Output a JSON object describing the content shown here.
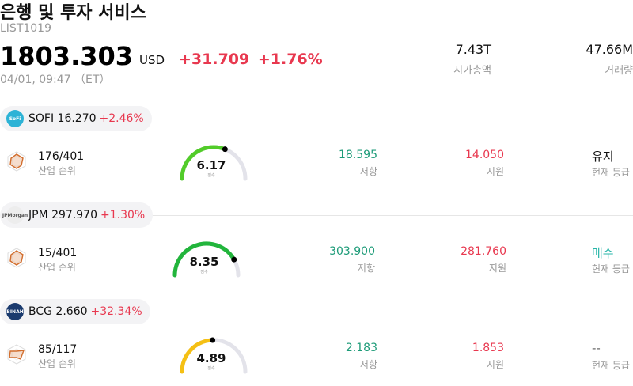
{
  "header": {
    "title": "은행 및 투자 서비스",
    "code": "LIST1019",
    "price": "1803.303",
    "currency": "USD",
    "change_abs": "+31.709",
    "change_pct": "+1.76%",
    "timestamp": "04/01, 09:47 （ET）",
    "market_cap_value": "7.43T",
    "market_cap_label": "시가총액",
    "volume_value": "47.66M",
    "volume_label": "거래량"
  },
  "colors": {
    "up": "#e8384f",
    "resistance": "#1d9b78",
    "buy": "#26b5a8"
  },
  "stocks": [
    {
      "symbol_price": "SOFI 16.270",
      "change": "+2.46%",
      "logo_text": "SoFi",
      "logo_color": "#2db3d6",
      "rank": "176/401",
      "rank_label": "산업 순위",
      "score": "6.17",
      "score_fraction": 0.617,
      "score_color": "#52cc2a",
      "score_label": "점수",
      "resistance": "18.595",
      "resistance_label": "저항",
      "support": "14.050",
      "support_label": "지원",
      "grade": "유지",
      "grade_color": "#111111",
      "grade_label": "현재 등급"
    },
    {
      "symbol_price": "JPM 297.970",
      "change": "+1.30%",
      "logo_text": "JPMorgan",
      "logo_color": "#ededed",
      "rank": "15/401",
      "rank_label": "산업 순위",
      "score": "8.35",
      "score_fraction": 0.835,
      "score_color": "#22b53c",
      "score_label": "점수",
      "resistance": "303.900",
      "resistance_label": "저항",
      "support": "281.760",
      "support_label": "지원",
      "grade": "매수",
      "grade_color": "#26b5a8",
      "grade_label": "현재 등급"
    },
    {
      "symbol_price": "BCG 2.660",
      "change": "+32.34%",
      "logo_text": "BINAH",
      "logo_color": "#1a3a6e",
      "rank": "85/117",
      "rank_label": "산업 순위",
      "score": "4.89",
      "score_fraction": 0.489,
      "score_color": "#f5c014",
      "score_label": "점수",
      "resistance": "2.183",
      "resistance_label": "저항",
      "support": "1.853",
      "support_label": "지원",
      "grade": "--",
      "grade_color": "#666666",
      "grade_label": "현재 등급"
    }
  ]
}
